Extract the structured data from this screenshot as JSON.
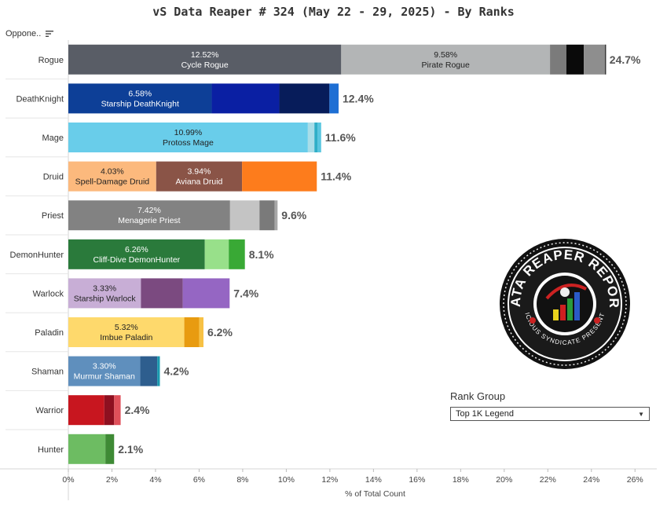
{
  "chart_data": {
    "type": "bar",
    "orientation": "horizontal",
    "stacked": true,
    "title": "vS Data Reaper #  324 (May 22 - 29, 2025) - By Ranks",
    "ylabel": "Oppone..",
    "xlabel": "% of Total Count",
    "xlim": [
      0,
      27
    ],
    "ticks": [
      0,
      2,
      4,
      6,
      8,
      10,
      12,
      14,
      16,
      18,
      20,
      22,
      24,
      26
    ],
    "tick_labels": [
      "0%",
      "2%",
      "4%",
      "6%",
      "8%",
      "10%",
      "12%",
      "14%",
      "16%",
      "18%",
      "20%",
      "22%",
      "24%",
      "26%"
    ],
    "grid": false,
    "categories": [
      {
        "name": "Rogue",
        "total_label": "24.7%",
        "segments": [
          {
            "value": 12.52,
            "label": "12.52%",
            "name": "Cycle Rogue",
            "color": "#595d66",
            "text_color": "#ffffff"
          },
          {
            "value": 9.58,
            "label": "9.58%",
            "name": "Pirate Rogue",
            "color": "#b3b5b6",
            "text_color": "#222222"
          },
          {
            "value": 0.75,
            "color": "#7b7b7b"
          },
          {
            "value": 0.8,
            "color": "#0a0a0a"
          },
          {
            "value": 1.0,
            "color": "#8e8e8e"
          }
        ]
      },
      {
        "name": "DeathKnight",
        "total_label": "12.4%",
        "segments": [
          {
            "value": 6.58,
            "label": "6.58%",
            "name": "Starship DeathKnight",
            "color": "#0d3f97",
            "text_color": "#ffffff"
          },
          {
            "value": 3.1,
            "color": "#0a1fa3"
          },
          {
            "value": 2.3,
            "color": "#071c5a"
          },
          {
            "value": 0.42,
            "color": "#1e6fd4"
          }
        ]
      },
      {
        "name": "Mage",
        "total_label": "11.6%",
        "segments": [
          {
            "value": 10.99,
            "label": "10.99%",
            "name": "Protoss Mage",
            "color": "#69cdea",
            "text_color": "#222222"
          },
          {
            "value": 0.3,
            "color": "#a9dde8"
          },
          {
            "value": 0.15,
            "color": "#2faec7"
          },
          {
            "value": 0.16,
            "color": "#59c6e0"
          }
        ]
      },
      {
        "name": "Druid",
        "total_label": "11.4%",
        "segments": [
          {
            "value": 4.03,
            "label": "4.03%",
            "name": "Spell-Damage Druid",
            "color": "#fcb97d",
            "text_color": "#222222"
          },
          {
            "value": 3.94,
            "label": "3.94%",
            "name": "Aviana Druid",
            "color": "#8a5447",
            "text_color": "#ffffff"
          },
          {
            "value": 3.43,
            "color": "#fd7c1c"
          }
        ]
      },
      {
        "name": "Priest",
        "total_label": "9.6%",
        "segments": [
          {
            "value": 7.42,
            "label": "7.42%",
            "name": "Menagerie Priest",
            "color": "#828282",
            "text_color": "#ffffff"
          },
          {
            "value": 1.35,
            "color": "#c4c4c4"
          },
          {
            "value": 0.7,
            "color": "#7a7a7a"
          },
          {
            "value": 0.13,
            "color": "#a8a8a8"
          }
        ]
      },
      {
        "name": "DemonHunter",
        "total_label": "8.1%",
        "segments": [
          {
            "value": 6.26,
            "label": "6.26%",
            "name": "Cliff-Dive DemonHunter",
            "color": "#2a7a3b",
            "text_color": "#ffffff"
          },
          {
            "value": 1.1,
            "color": "#98e08a"
          },
          {
            "value": 0.74,
            "color": "#39a935"
          }
        ]
      },
      {
        "name": "Warlock",
        "total_label": "7.4%",
        "segments": [
          {
            "value": 3.33,
            "label": "3.33%",
            "name": "Starship Warlock",
            "color": "#c8aed6",
            "text_color": "#222222"
          },
          {
            "value": 1.92,
            "color": "#7b4a80"
          },
          {
            "value": 2.15,
            "color": "#9566c3"
          }
        ]
      },
      {
        "name": "Paladin",
        "total_label": "6.2%",
        "segments": [
          {
            "value": 5.32,
            "label": "5.32%",
            "name": "Imbue Paladin",
            "color": "#fed96c",
            "text_color": "#222222"
          },
          {
            "value": 0.68,
            "color": "#e89b10"
          },
          {
            "value": 0.2,
            "color": "#f7c144"
          }
        ]
      },
      {
        "name": "Shaman",
        "total_label": "4.2%",
        "segments": [
          {
            "value": 3.3,
            "label": "3.30%",
            "name": "Murmur Shaman",
            "color": "#5f8fbd",
            "text_color": "#ffffff"
          },
          {
            "value": 0.78,
            "color": "#2e5e8e"
          },
          {
            "value": 0.12,
            "color": "#1a9ab0"
          }
        ]
      },
      {
        "name": "Warrior",
        "total_label": "2.4%",
        "segments": [
          {
            "value": 1.65,
            "color": "#c8161f"
          },
          {
            "value": 0.45,
            "color": "#8e1020"
          },
          {
            "value": 0.3,
            "color": "#e0505a"
          }
        ]
      },
      {
        "name": "Hunter",
        "total_label": "2.1%",
        "segments": [
          {
            "value": 1.7,
            "color": "#6dbc62"
          },
          {
            "value": 0.4,
            "color": "#3e8a35"
          }
        ]
      }
    ]
  },
  "controls": {
    "rank_group_title": "Rank Group",
    "rank_group_value": "Top 1K Legend"
  },
  "logo": {
    "text_top": "DATA REAPER REPORT",
    "text_bottom": "VICIOUS SYNDICATE PRESENTS"
  }
}
